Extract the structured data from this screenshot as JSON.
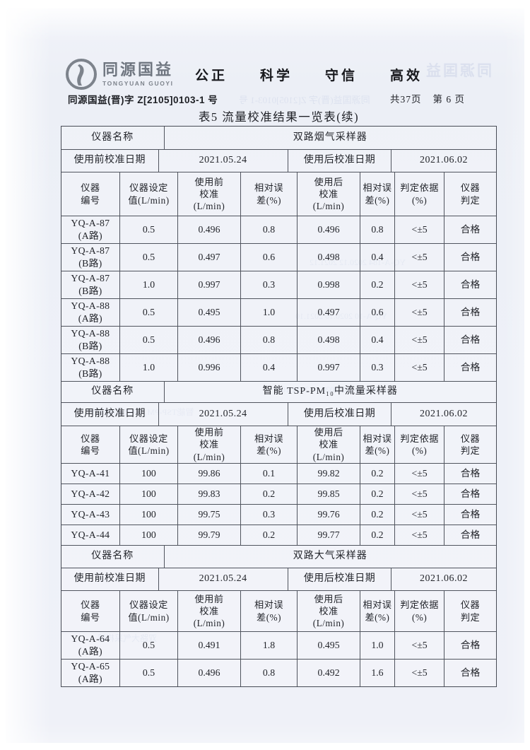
{
  "header": {
    "logo_cn": "同源国益",
    "logo_en": "TONGYUAN GUOYI",
    "slogan": [
      "公正",
      "科学",
      "守信",
      "高效"
    ],
    "doc_number": "同源国益(晋)字 Z[2105]0103-1 号",
    "page_total": "共37页",
    "page_current": "第 6 页",
    "title": "表5 流量校准结果一览表(续)"
  },
  "table": {
    "labels": {
      "name": "仪器名称",
      "pre_date": "使用前校准日期",
      "post_date": "使用后校准日期"
    },
    "columns": [
      "仪器\n编号",
      "仪器设定\n值(L/min)",
      "使用前\n校准\n(L/min)",
      "相对误\n差(%)",
      "使用后\n校准\n(L/min)",
      "相对误\n差(%)",
      "判定依据\n(%)",
      "仪器\n判定"
    ],
    "sections": [
      {
        "instrument": "双路烟气采样器",
        "pre_date": "2021.05.24",
        "post_date": "2021.06.02",
        "rows": [
          [
            "YQ-A-87\n(A路)",
            "0.5",
            "0.496",
            "0.8",
            "0.496",
            "0.8",
            "<±5",
            "合格"
          ],
          [
            "YQ-A-87\n(B路)",
            "0.5",
            "0.497",
            "0.6",
            "0.498",
            "0.4",
            "<±5",
            "合格"
          ],
          [
            "YQ-A-87\n(B路)",
            "1.0",
            "0.997",
            "0.3",
            "0.998",
            "0.2",
            "<±5",
            "合格"
          ],
          [
            "YQ-A-88\n(A路)",
            "0.5",
            "0.495",
            "1.0",
            "0.497",
            "0.6",
            "<±5",
            "合格"
          ],
          [
            "YQ-A-88\n(B路)",
            "0.5",
            "0.496",
            "0.8",
            "0.498",
            "0.4",
            "<±5",
            "合格"
          ],
          [
            "YQ-A-88\n(B路)",
            "1.0",
            "0.996",
            "0.4",
            "0.997",
            "0.3",
            "<±5",
            "合格"
          ]
        ]
      },
      {
        "instrument": "智能 TSP-PM₁₀中流量采样器",
        "pre_date": "2021.05.24",
        "post_date": "2021.06.02",
        "rows": [
          [
            "YQ-A-41",
            "100",
            "99.86",
            "0.1",
            "99.82",
            "0.2",
            "<±5",
            "合格"
          ],
          [
            "YQ-A-42",
            "100",
            "99.83",
            "0.2",
            "99.85",
            "0.2",
            "<±5",
            "合格"
          ],
          [
            "YQ-A-43",
            "100",
            "99.75",
            "0.3",
            "99.76",
            "0.2",
            "<±5",
            "合格"
          ],
          [
            "YQ-A-44",
            "100",
            "99.79",
            "0.2",
            "99.77",
            "0.2",
            "<±5",
            "合格"
          ]
        ]
      },
      {
        "instrument": "双路大气采样器",
        "pre_date": "2021.05.24",
        "post_date": "2021.06.02",
        "rows": [
          [
            "YQ-A-64\n(A路)",
            "0.5",
            "0.491",
            "1.8",
            "0.495",
            "1.0",
            "<±5",
            "合格"
          ],
          [
            "YQ-A-65\n(A路)",
            "0.5",
            "0.496",
            "0.8",
            "0.492",
            "1.6",
            "<±5",
            "合格"
          ]
        ]
      }
    ]
  },
  "bleedthrough": {
    "logo": "同源国益",
    "doc": "同源国益(晋)字 Z[2105]0103-1 号",
    "rows": [
      "YQ-A-184  2020.12  2021.12",
      "YQ-A-10  2020.10  2021.10",
      "YQ-A-165  2020.10  2021.10",
      "智能TSP-PM₁₀中流量采样器",
      "双路大气采样器"
    ]
  }
}
